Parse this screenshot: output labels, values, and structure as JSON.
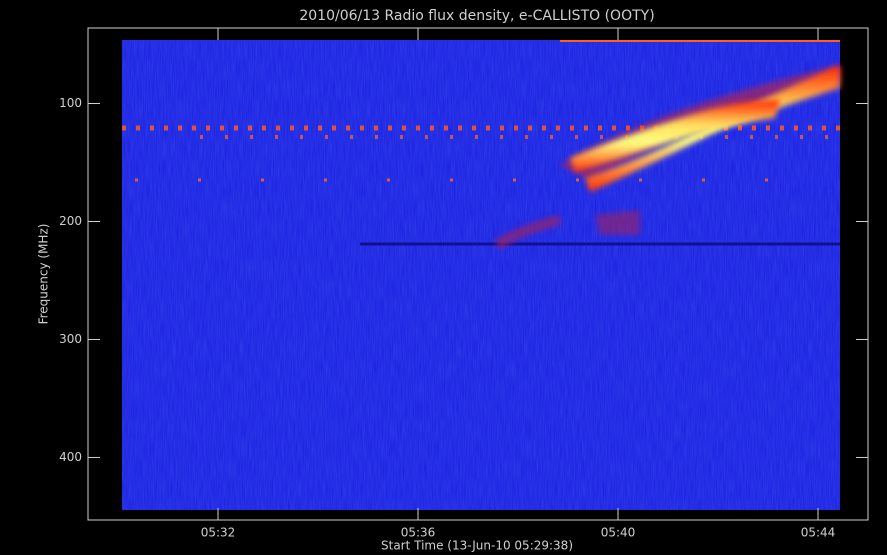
{
  "chart_data": {
    "type": "spectrogram",
    "title": "2010/06/13  Radio flux density, e-CALLISTO (OOTY)",
    "x_label": "Start Time (13-Jun-10 05:29:38)",
    "y_label": "Frequency (MHz)",
    "xlim": [
      329.4,
      345
    ],
    "xticks": [
      {
        "value": 332,
        "label": "05:32"
      },
      {
        "value": 336,
        "label": "05:36"
      },
      {
        "value": 340,
        "label": "05:40"
      },
      {
        "value": 344,
        "label": "05:44"
      }
    ],
    "ylim": [
      36,
      453
    ],
    "yticks": [
      100,
      200,
      300,
      400
    ],
    "inverted_y": true
  }
}
